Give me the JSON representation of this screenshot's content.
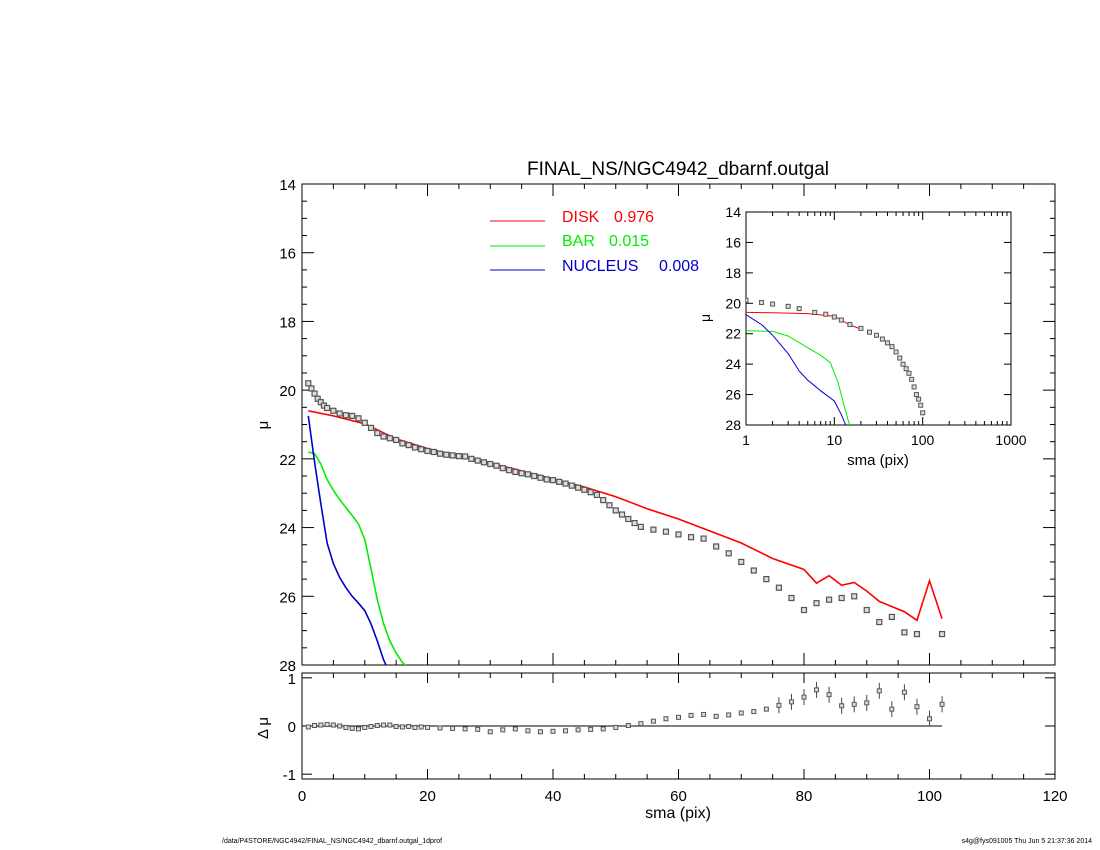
{
  "footer": {
    "left": "/data/P4STORE/NGC4942/FINAL_NS/NGC4942_dbarnf.outgal_1dprof",
    "right": "s4g@fys091005  Thu Jun  5 21:37:36 2014"
  },
  "colors": {
    "disk": "#ff0000",
    "bar": "#00ee00",
    "nucleus": "#0000cc",
    "data": "#555555",
    "axis": "#000000"
  },
  "chart_data": [
    {
      "type": "line",
      "title": "FINAL_NS/NGC4942_dbarnf.outgal",
      "xlabel": "",
      "ylabel": "μ",
      "xlim": [
        0,
        120
      ],
      "ylim": [
        28,
        14
      ],
      "y_inverted": true,
      "yticks": [
        "14",
        "16",
        "18",
        "20",
        "22",
        "24",
        "26",
        "28"
      ],
      "legend": [
        {
          "label": "DISK",
          "value": "0.976",
          "color": "#ff0000"
        },
        {
          "label": "BAR",
          "value": "0.015",
          "color": "#00ee00"
        },
        {
          "label": "NUCLEUS",
          "value": "0.008",
          "color": "#0000cc"
        }
      ],
      "legend_position": "top-center",
      "series": [
        {
          "name": "DISK",
          "style": "line",
          "x": [
            1,
            5,
            10,
            15,
            20,
            25,
            30,
            35,
            40,
            45,
            50,
            55,
            60,
            65,
            70,
            75,
            80,
            82,
            84,
            86,
            88,
            90,
            92,
            94,
            96,
            98,
            100,
            102
          ],
          "y": [
            20.6,
            20.75,
            20.98,
            21.42,
            21.7,
            21.92,
            22.12,
            22.35,
            22.58,
            22.82,
            23.1,
            23.45,
            23.75,
            24.1,
            24.45,
            24.9,
            25.22,
            25.62,
            25.4,
            25.68,
            25.6,
            25.85,
            26.15,
            26.3,
            26.45,
            26.7,
            25.55,
            26.65
          ]
        },
        {
          "name": "BAR",
          "style": "line",
          "x": [
            1,
            2,
            3,
            4,
            5,
            6,
            7,
            8,
            9,
            10,
            11,
            12,
            13,
            14,
            15,
            16,
            17
          ],
          "y": [
            21.8,
            21.85,
            22.15,
            22.6,
            22.92,
            23.18,
            23.42,
            23.65,
            23.9,
            24.35,
            25.2,
            26.1,
            26.8,
            27.3,
            27.65,
            27.92,
            28.1
          ]
        },
        {
          "name": "NUCLEUS",
          "style": "line",
          "x": [
            1,
            2,
            3,
            4,
            5,
            6,
            7,
            8,
            9,
            10,
            11,
            12,
            13,
            14
          ],
          "y": [
            20.75,
            22.1,
            23.3,
            24.45,
            25.05,
            25.45,
            25.75,
            26.0,
            26.2,
            26.42,
            26.8,
            27.3,
            27.85,
            28.25
          ]
        },
        {
          "name": "",
          "style": "squares",
          "x": [
            1,
            1.5,
            2,
            2.5,
            3,
            3.5,
            4,
            5,
            6,
            7,
            8,
            9,
            10,
            11,
            12,
            13,
            14,
            15,
            16,
            17,
            18,
            19,
            20,
            21,
            22,
            23,
            24,
            25,
            26,
            27,
            28,
            29,
            30,
            31,
            32,
            33,
            34,
            35,
            36,
            37,
            38,
            39,
            40,
            41,
            42,
            43,
            44,
            45,
            46,
            47,
            48,
            49,
            50,
            51,
            52,
            53,
            54,
            56,
            58,
            60,
            62,
            64,
            66,
            68,
            70,
            72,
            74,
            76,
            78,
            80,
            82,
            84,
            86,
            88,
            90,
            92,
            94,
            96,
            98,
            102
          ],
          "y": [
            19.8,
            19.95,
            20.1,
            20.25,
            20.35,
            20.45,
            20.52,
            20.6,
            20.68,
            20.73,
            20.75,
            20.82,
            20.95,
            21.1,
            21.25,
            21.35,
            21.4,
            21.45,
            21.55,
            21.6,
            21.67,
            21.72,
            21.77,
            21.8,
            21.85,
            21.88,
            21.9,
            21.92,
            21.93,
            22.0,
            22.05,
            22.1,
            22.15,
            22.2,
            22.27,
            22.33,
            22.38,
            22.42,
            22.45,
            22.5,
            22.55,
            22.6,
            22.62,
            22.67,
            22.72,
            22.78,
            22.84,
            22.9,
            22.97,
            23.05,
            23.2,
            23.35,
            23.5,
            23.62,
            23.75,
            23.87,
            23.98,
            24.06,
            24.12,
            24.2,
            24.28,
            24.32,
            24.55,
            24.75,
            25.0,
            25.25,
            25.5,
            25.75,
            26.05,
            26.4,
            26.2,
            26.1,
            26.05,
            26.0,
            26.4,
            26.75,
            26.6,
            27.05,
            27.1,
            27.1
          ]
        }
      ]
    },
    {
      "type": "scatter",
      "title": "",
      "xlabel": "sma (pix)",
      "ylabel": "Δ μ",
      "xlim": [
        0,
        120
      ],
      "ylim": [
        -1.1,
        1.1
      ],
      "xticks": [
        "0",
        "20",
        "40",
        "60",
        "80",
        "100",
        "120"
      ],
      "yticks": [
        "1",
        "0",
        "-1"
      ],
      "series": [
        {
          "name": "",
          "style": "line",
          "x": [
            1,
            102
          ],
          "y": [
            0,
            0
          ]
        },
        {
          "name": "",
          "style": "squares",
          "x": [
            1,
            2,
            3,
            4,
            5,
            6,
            7,
            8,
            9,
            10,
            11,
            12,
            13,
            14,
            15,
            16,
            17,
            18,
            19,
            20,
            22,
            24,
            26,
            28,
            30,
            32,
            34,
            36,
            38,
            40,
            42,
            44,
            46,
            48,
            50,
            52,
            54,
            56,
            58,
            60,
            62,
            64,
            66,
            68,
            70,
            72,
            74,
            76,
            78,
            80,
            82,
            84,
            86,
            88,
            90,
            92,
            94,
            96,
            98,
            100,
            102
          ],
          "y": [
            -0.02,
            0.01,
            0.02,
            0.03,
            0.02,
            0.0,
            -0.03,
            -0.05,
            -0.06,
            -0.03,
            -0.01,
            0.01,
            0.02,
            0.02,
            -0.01,
            -0.02,
            -0.01,
            -0.03,
            -0.02,
            -0.03,
            -0.04,
            -0.05,
            -0.06,
            -0.07,
            -0.12,
            -0.08,
            -0.06,
            -0.1,
            -0.12,
            -0.11,
            -0.1,
            -0.08,
            -0.07,
            -0.06,
            -0.03,
            0.01,
            0.05,
            0.1,
            0.15,
            0.18,
            0.22,
            0.24,
            0.2,
            0.23,
            0.27,
            0.3,
            0.35,
            0.43,
            0.5,
            0.6,
            0.75,
            0.65,
            0.42,
            0.45,
            0.48,
            0.73,
            0.35,
            0.7,
            0.4,
            0.15,
            0.45
          ]
        }
      ]
    },
    {
      "type": "line",
      "title": "",
      "xlabel": "sma (pix)",
      "ylabel": "μ",
      "x_scale": "log",
      "xlim": [
        1,
        1000
      ],
      "ylim": [
        28,
        14
      ],
      "y_inverted": true,
      "xticks": [
        "1",
        "10",
        "100",
        "1000"
      ],
      "yticks": [
        "14",
        "16",
        "18",
        "20",
        "22",
        "24",
        "26",
        "28"
      ],
      "series": [
        {
          "name": "DISK",
          "style": "line",
          "x": [
            1,
            2,
            5,
            10,
            15,
            20
          ],
          "y": [
            20.6,
            20.62,
            20.68,
            20.85,
            21.42,
            21.7
          ]
        },
        {
          "name": "BAR",
          "style": "line",
          "x": [
            1,
            2,
            3,
            5,
            7,
            9,
            11,
            13,
            15
          ],
          "y": [
            21.8,
            21.85,
            22.15,
            22.92,
            23.42,
            23.9,
            25.2,
            26.8,
            28.1
          ]
        },
        {
          "name": "NUCLEUS",
          "style": "line",
          "x": [
            1,
            1.5,
            2,
            3,
            4,
            5,
            7,
            10,
            12,
            14
          ],
          "y": [
            20.75,
            21.4,
            22.1,
            23.3,
            24.45,
            25.05,
            25.75,
            26.42,
            27.3,
            28.25
          ]
        },
        {
          "name": "",
          "style": "squares",
          "x": [
            1,
            1.5,
            2,
            3,
            4,
            6,
            8,
            10,
            12,
            15,
            20,
            25,
            30,
            35,
            40,
            45,
            50,
            55,
            60,
            65,
            70,
            75,
            80,
            85,
            90,
            95,
            100
          ],
          "y": [
            19.8,
            19.95,
            20.05,
            20.2,
            20.35,
            20.6,
            20.72,
            20.9,
            21.1,
            21.4,
            21.65,
            21.9,
            22.1,
            22.35,
            22.6,
            22.85,
            23.2,
            23.6,
            24.0,
            24.3,
            24.6,
            25.0,
            25.5,
            26.0,
            26.3,
            26.7,
            27.2
          ]
        }
      ]
    }
  ]
}
